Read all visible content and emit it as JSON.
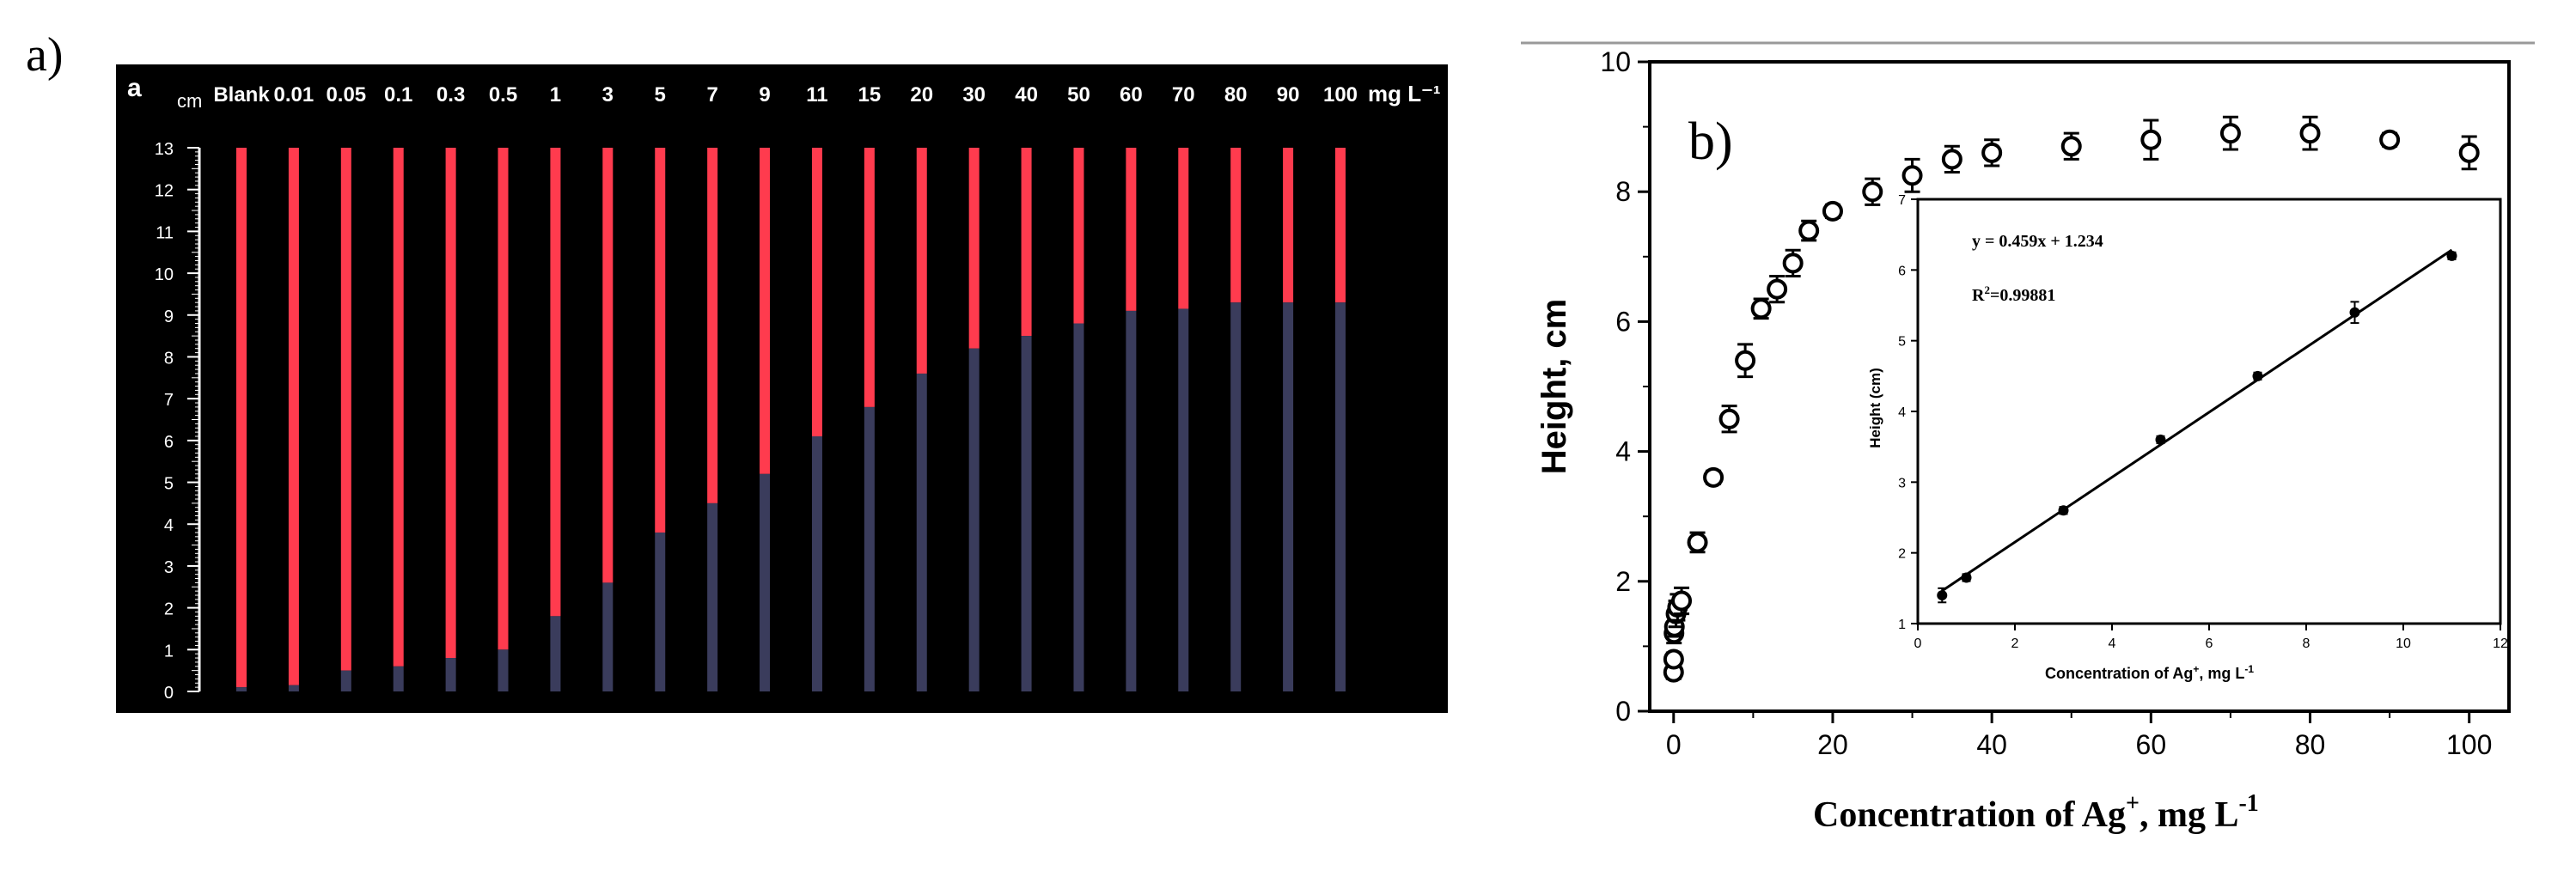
{
  "panel_a": {
    "outer_label": "a)",
    "inner_label": "a",
    "axis_unit": "cm",
    "scale_ticks": [
      "0",
      "1",
      "2",
      "3",
      "4",
      "5",
      "6",
      "7",
      "8",
      "9",
      "10",
      "11",
      "12",
      "13"
    ],
    "column_labels": [
      "Blank",
      "0.01",
      "0.05",
      "0.1",
      "0.3",
      "0.5",
      "1",
      "3",
      "5",
      "7",
      "9",
      "11",
      "15",
      "20",
      "30",
      "40",
      "50",
      "60",
      "70",
      "80",
      "90",
      "100"
    ],
    "concentration_unit": "mg L⁻¹",
    "colors": {
      "background": "#000000",
      "red_band": "#ff3b4e",
      "dark_band": "#3a3c5c",
      "scale": "#ffffff"
    }
  },
  "panel_b": {
    "outer_label": "b)",
    "xlabel_main": "Concentration of Ag",
    "xlabel_sup": "+",
    "xlabel_unit": ", mg L",
    "xlabel_unit_sup": "-1",
    "ylabel": "Height, cm",
    "x_ticks": [
      "0",
      "20",
      "40",
      "60",
      "80",
      "100"
    ],
    "y_ticks": [
      "0",
      "2",
      "4",
      "6",
      "8",
      "10"
    ],
    "inset": {
      "equation": "y = 0.459x + 1.234",
      "r_squared_label": "R",
      "r_squared_sup": "2",
      "r_squared_value": "=0.99881",
      "xlabel_main": "Concentration of Ag",
      "xlabel_sup": "+",
      "xlabel_unit": ", mg L",
      "xlabel_unit_sup": "-1",
      "ylabel": "Height (cm)",
      "x_ticks": [
        "0",
        "2",
        "4",
        "6",
        "8",
        "10",
        "12"
      ],
      "y_ticks": [
        "1",
        "2",
        "3",
        "4",
        "5",
        "6",
        "7"
      ]
    }
  },
  "chart_data": [
    {
      "type": "bar",
      "categories": [
        "Blank",
        "0.01",
        "0.05",
        "0.1",
        "0.3",
        "0.5",
        "1",
        "3",
        "5",
        "7",
        "9",
        "11",
        "15",
        "20",
        "30",
        "40",
        "50",
        "60",
        "70",
        "80",
        "90",
        "100"
      ],
      "series": [
        {
          "values": [
            0.1,
            0.15,
            0.5,
            0.6,
            0.8,
            1.0,
            1.8,
            2.6,
            3.8,
            4.5,
            5.2,
            6.1,
            6.8,
            7.6,
            8.2,
            8.5,
            8.8,
            9.1,
            9.15,
            9.3,
            9.3,
            9.3
          ]
        }
      ],
      "ylabel": "cm",
      "ylim": [
        0,
        13
      ],
      "total_height": 13
    },
    {
      "type": "scatter",
      "xlabel": "Concentration of Ag+, mg L-1",
      "ylabel": "Height, cm",
      "xlim": [
        -3,
        105
      ],
      "ylim": [
        0,
        10
      ],
      "series": [
        {
          "x": [
            0,
            0.01,
            0.05,
            0.1,
            0.3,
            0.5,
            1,
            3,
            5,
            7,
            9,
            11,
            13,
            15,
            17,
            20,
            25,
            30,
            35,
            40,
            50,
            60,
            70,
            80,
            90,
            100
          ],
          "y": [
            0.6,
            0.8,
            1.2,
            1.3,
            1.5,
            1.6,
            1.7,
            2.6,
            3.6,
            4.5,
            5.4,
            6.2,
            6.5,
            6.9,
            7.4,
            7.7,
            8.0,
            8.25,
            8.5,
            8.6,
            8.7,
            8.8,
            8.9,
            8.9,
            8.8,
            8.6
          ],
          "yerr": [
            0.1,
            0.1,
            0.15,
            0.15,
            0.2,
            0.2,
            0.2,
            0.15,
            0.1,
            0.2,
            0.25,
            0.15,
            0.2,
            0.2,
            0.15,
            0.1,
            0.2,
            0.25,
            0.2,
            0.2,
            0.2,
            0.3,
            0.25,
            0.25,
            0.1,
            0.25
          ]
        }
      ],
      "grid": false
    },
    {
      "type": "scatter",
      "xlabel": "Concentration of Ag+, mg L-1",
      "ylabel": "Height (cm)",
      "xlim": [
        0,
        12
      ],
      "ylim": [
        1,
        7
      ],
      "series": [
        {
          "x": [
            0.5,
            1,
            3,
            5,
            7,
            9,
            11
          ],
          "y": [
            1.4,
            1.65,
            2.6,
            3.6,
            4.5,
            5.4,
            6.2
          ],
          "yerr": [
            0.1,
            0.05,
            0.05,
            0.05,
            0.05,
            0.15,
            0.05
          ]
        }
      ],
      "fit": {
        "slope": 0.459,
        "intercept": 1.234,
        "equation": "y = 0.459x + 1.234",
        "r_squared": 0.99881
      }
    }
  ]
}
